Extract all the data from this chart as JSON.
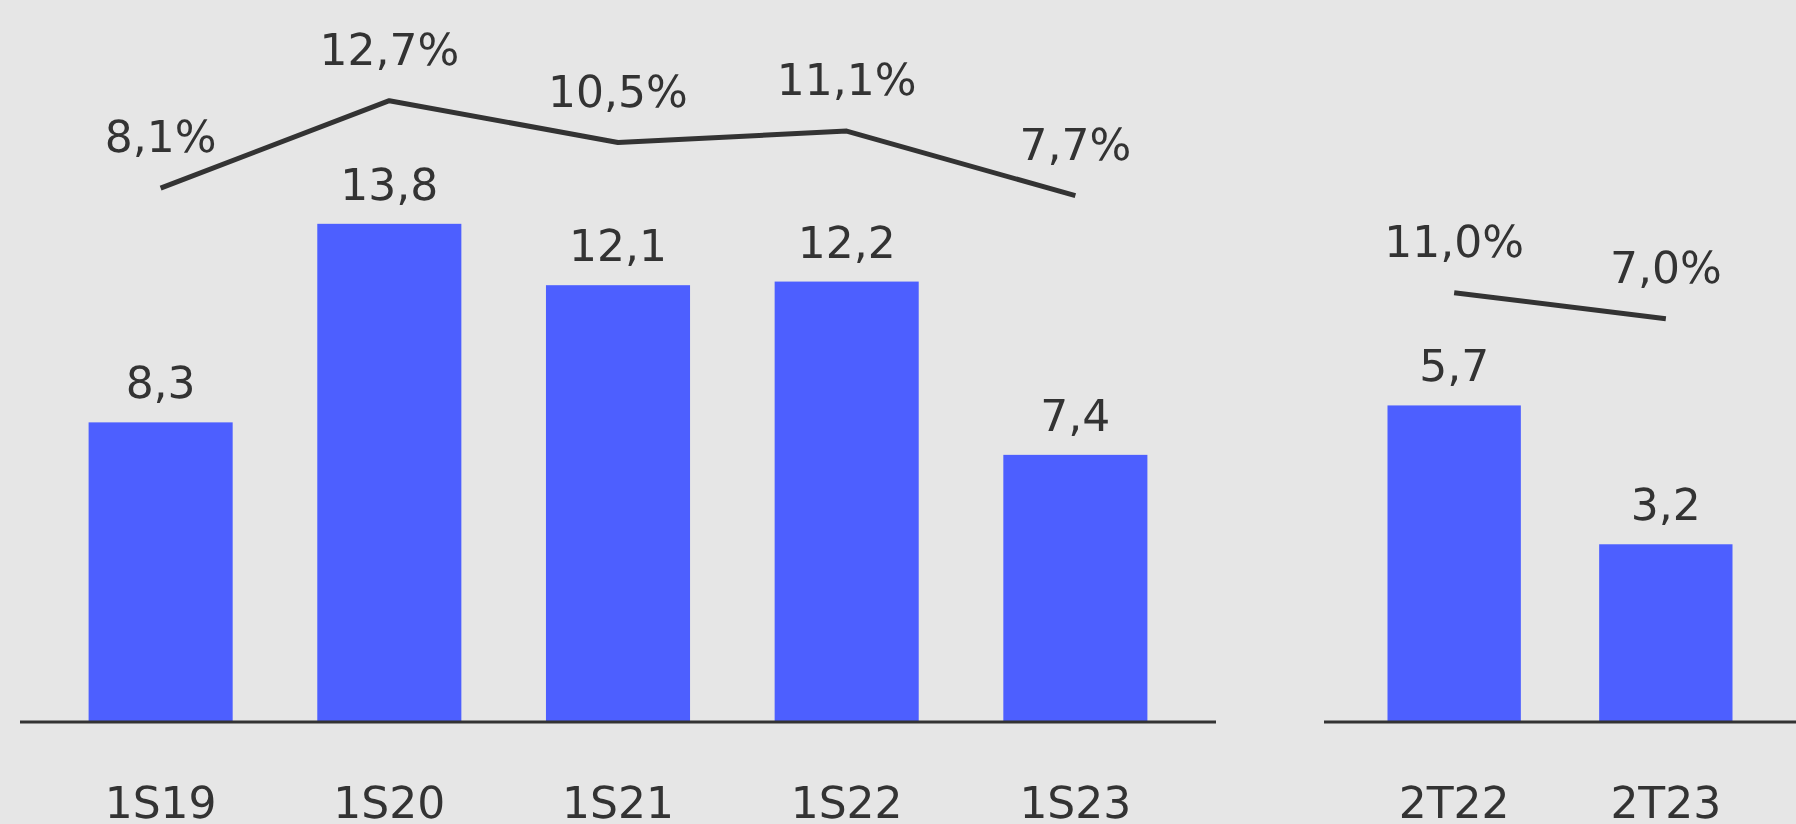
{
  "chart_data": [
    {
      "type": "bar",
      "categories": [
        "1S19",
        "1S20",
        "1S21",
        "1S22",
        "1S23"
      ],
      "ylim": [
        0,
        20
      ],
      "y2lim": [
        -20,
        18
      ],
      "tick_labels": "x",
      "data_labels": true,
      "grid": false,
      "series": [
        {
          "color": "#4d5fff",
          "values": [
            8.3,
            13.8,
            12.1,
            12.2,
            7.4
          ],
          "value_labels": [
            "8,3",
            "13,8",
            "12,1",
            "12,2",
            "7,4"
          ]
        },
        {
          "type": "line",
          "axis": "y2",
          "color": "#333333",
          "values": [
            8.1,
            12.7,
            10.5,
            11.1,
            7.7
          ],
          "value_labels": [
            "8,1%",
            "12,7%",
            "10,5%",
            "11,1%",
            "7,7%"
          ]
        }
      ]
    },
    {
      "type": "bar",
      "categories": [
        "2T22",
        "2T23"
      ],
      "ylim": [
        0,
        13
      ],
      "y2lim": [
        -55,
        56
      ],
      "tick_labels": "x",
      "data_labels": true,
      "grid": false,
      "series": [
        {
          "color": "#4d5fff",
          "values": [
            5.7,
            3.2
          ],
          "value_labels": [
            "5,7",
            "3,2"
          ]
        },
        {
          "type": "line",
          "axis": "y2",
          "color": "#333333",
          "values": [
            11.0,
            7.0
          ],
          "value_labels": [
            "11,0%",
            "7,0%"
          ]
        }
      ]
    }
  ]
}
